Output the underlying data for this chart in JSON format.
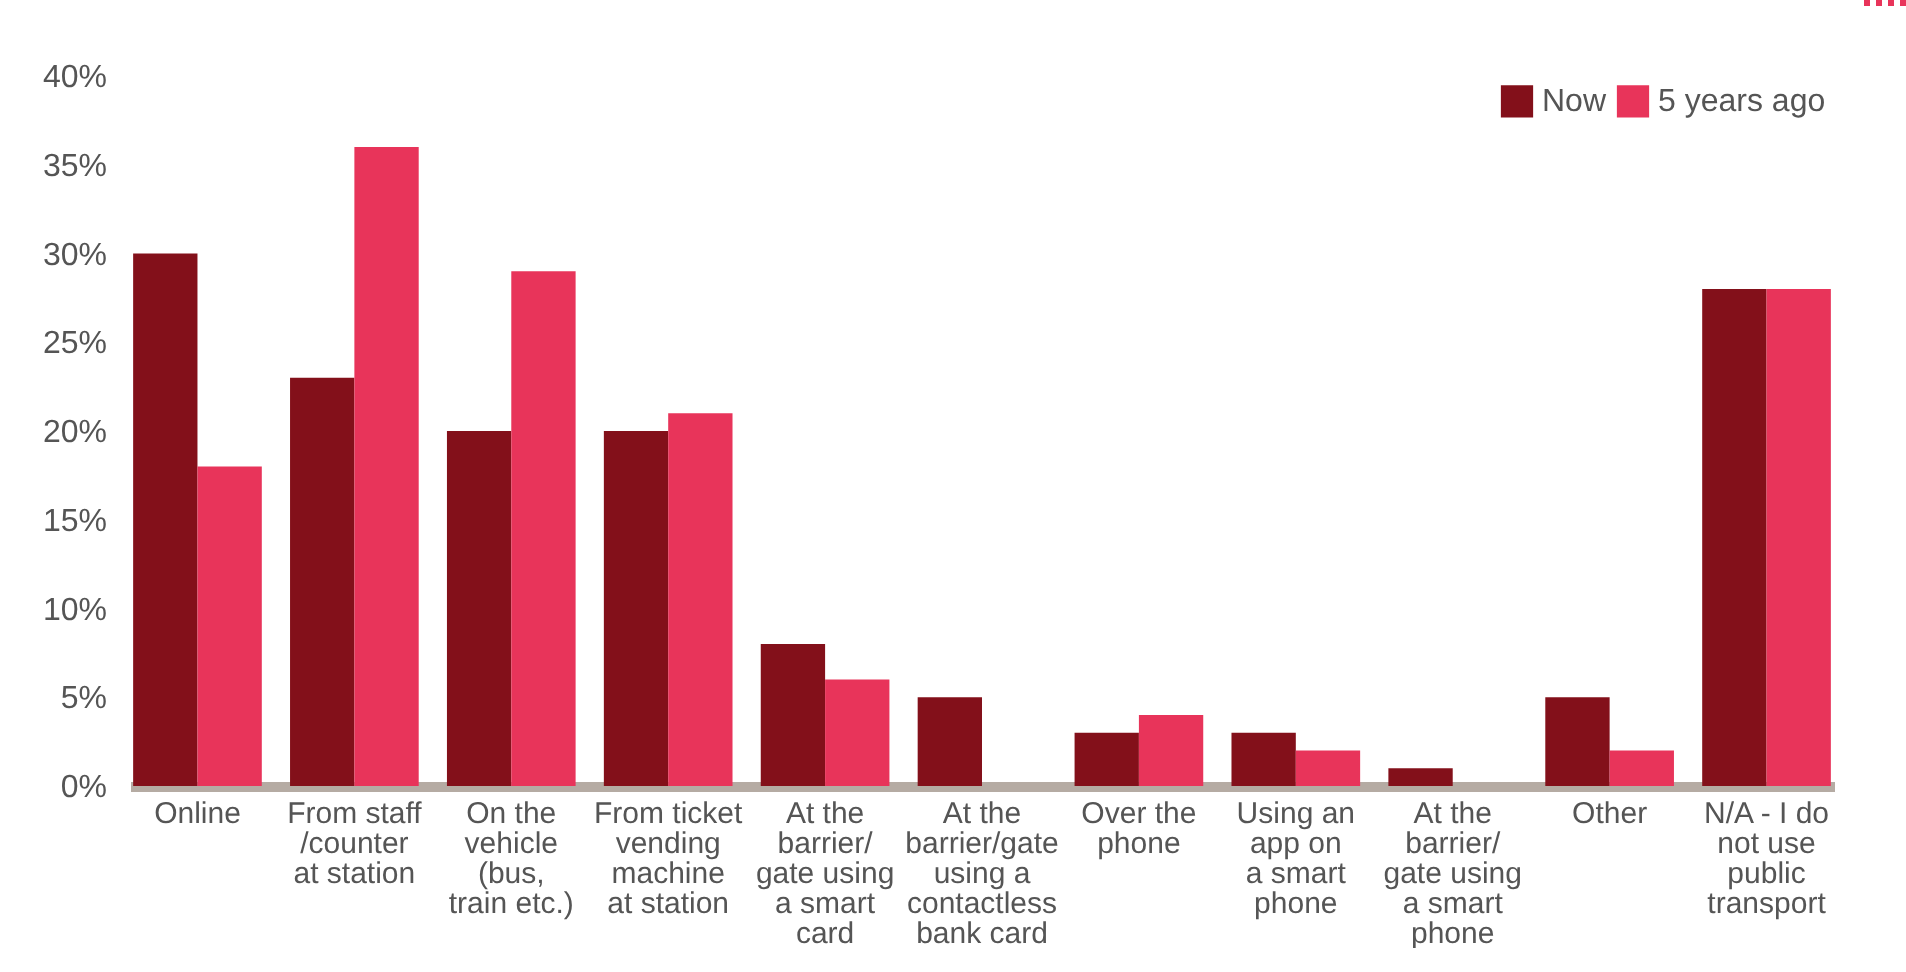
{
  "chart_data": {
    "type": "bar",
    "categories": [
      "Online",
      "From staff\n/counter\nat station",
      "On the\nvehicle\n(bus,\ntrain etc.)",
      "From ticket\nvending\nmachine\nat station",
      "At the\nbarrier/\ngate using\na smart\ncard",
      "At the\nbarrier/gate\nusing a\ncontactless\nbank card",
      "Over the\nphone",
      "Using an\napp on\na smart\nphone",
      "At the\nbarrier/\ngate using\na smart\nphone",
      "Other",
      "N/A - I do\nnot use\npublic\ntransport"
    ],
    "series": [
      {
        "name": "Now",
        "color": "#83101a",
        "values": [
          30,
          23,
          20,
          20,
          8,
          5,
          3,
          3,
          1,
          5,
          28
        ]
      },
      {
        "name": "5 years ago",
        "color": "#e8345a",
        "values": [
          18,
          36,
          29,
          21,
          6,
          0,
          4,
          2,
          0,
          2,
          28
        ]
      }
    ],
    "ylim": [
      0,
      40
    ],
    "yticks": [
      {
        "value": 0,
        "label": "0%"
      },
      {
        "value": 5,
        "label": "5%"
      },
      {
        "value": 10,
        "label": "10%"
      },
      {
        "value": 15,
        "label": "15%"
      },
      {
        "value": 20,
        "label": "20%"
      },
      {
        "value": 25,
        "label": "25%"
      },
      {
        "value": 30,
        "label": "30%"
      },
      {
        "value": 35,
        "label": "35%"
      },
      {
        "value": 40,
        "label": "40%"
      }
    ],
    "grid": false,
    "legend": "top right"
  }
}
